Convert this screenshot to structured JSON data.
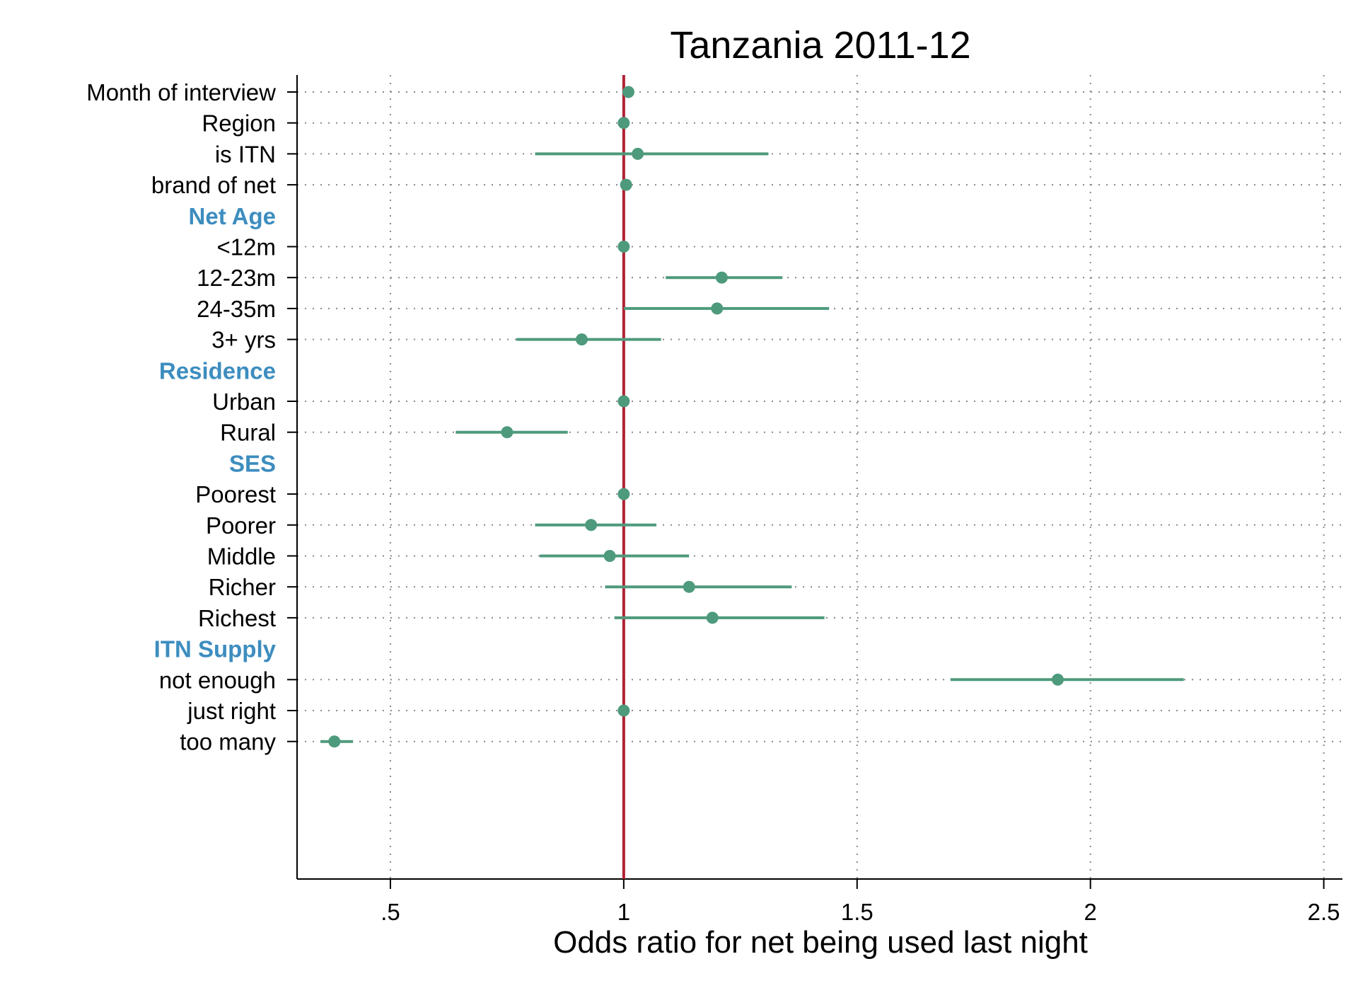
{
  "chart_data": {
    "type": "scatter",
    "title": "Tanzania 2011-12",
    "xlabel": "Odds ratio for net being used last night",
    "ylabel": "",
    "xlim": [
      0.3,
      2.54
    ],
    "xticks": [
      0.5,
      1,
      1.5,
      2,
      2.5
    ],
    "xtick_labels": [
      ".5",
      "1",
      "1.5",
      "2",
      "2.5"
    ],
    "reference_line": 1,
    "grid": "dotted vertical and horizontal",
    "rows": [
      {
        "label": "Month of interview",
        "or": 1.01,
        "lo": 1.0,
        "hi": 1.02
      },
      {
        "label": "Region",
        "or": 1.0,
        "lo": 1.0,
        "hi": 1.0
      },
      {
        "label": "is ITN",
        "or": 1.03,
        "lo": 0.81,
        "hi": 1.31
      },
      {
        "label": "brand of net",
        "or": 1.005,
        "lo": 1.0,
        "hi": 1.01
      },
      {
        "group": "Net Age"
      },
      {
        "label": "<12m",
        "or": 1.0,
        "lo": 1.0,
        "hi": 1.0
      },
      {
        "label": "12-23m",
        "or": 1.21,
        "lo": 1.09,
        "hi": 1.34
      },
      {
        "label": "24-35m",
        "or": 1.2,
        "lo": 1.0,
        "hi": 1.44
      },
      {
        "label": "3+ yrs",
        "or": 0.91,
        "lo": 0.77,
        "hi": 1.08
      },
      {
        "group": "Residence"
      },
      {
        "label": "Urban",
        "or": 1.0,
        "lo": 1.0,
        "hi": 1.0
      },
      {
        "label": "Rural",
        "or": 0.75,
        "lo": 0.64,
        "hi": 0.88
      },
      {
        "group": "SES"
      },
      {
        "label": "Poorest",
        "or": 1.0,
        "lo": 1.0,
        "hi": 1.0
      },
      {
        "label": "Poorer",
        "or": 0.93,
        "lo": 0.81,
        "hi": 1.07
      },
      {
        "label": "Middle",
        "or": 0.97,
        "lo": 0.82,
        "hi": 1.14
      },
      {
        "label": "Richer",
        "or": 1.14,
        "lo": 0.96,
        "hi": 1.36
      },
      {
        "label": "Richest",
        "or": 1.19,
        "lo": 0.98,
        "hi": 1.43
      },
      {
        "group": "ITN Supply"
      },
      {
        "label": "not enough",
        "or": 1.93,
        "lo": 1.7,
        "hi": 2.2
      },
      {
        "label": "just right",
        "or": 1.0,
        "lo": 1.0,
        "hi": 1.0
      },
      {
        "label": "too many",
        "or": 0.38,
        "lo": 0.35,
        "hi": 0.42
      }
    ]
  },
  "colors": {
    "marker": "#4e9a7c",
    "reference_line": "#b22234",
    "group_label": "#3d8dbf",
    "grid": "#888888",
    "axis": "#000000"
  }
}
